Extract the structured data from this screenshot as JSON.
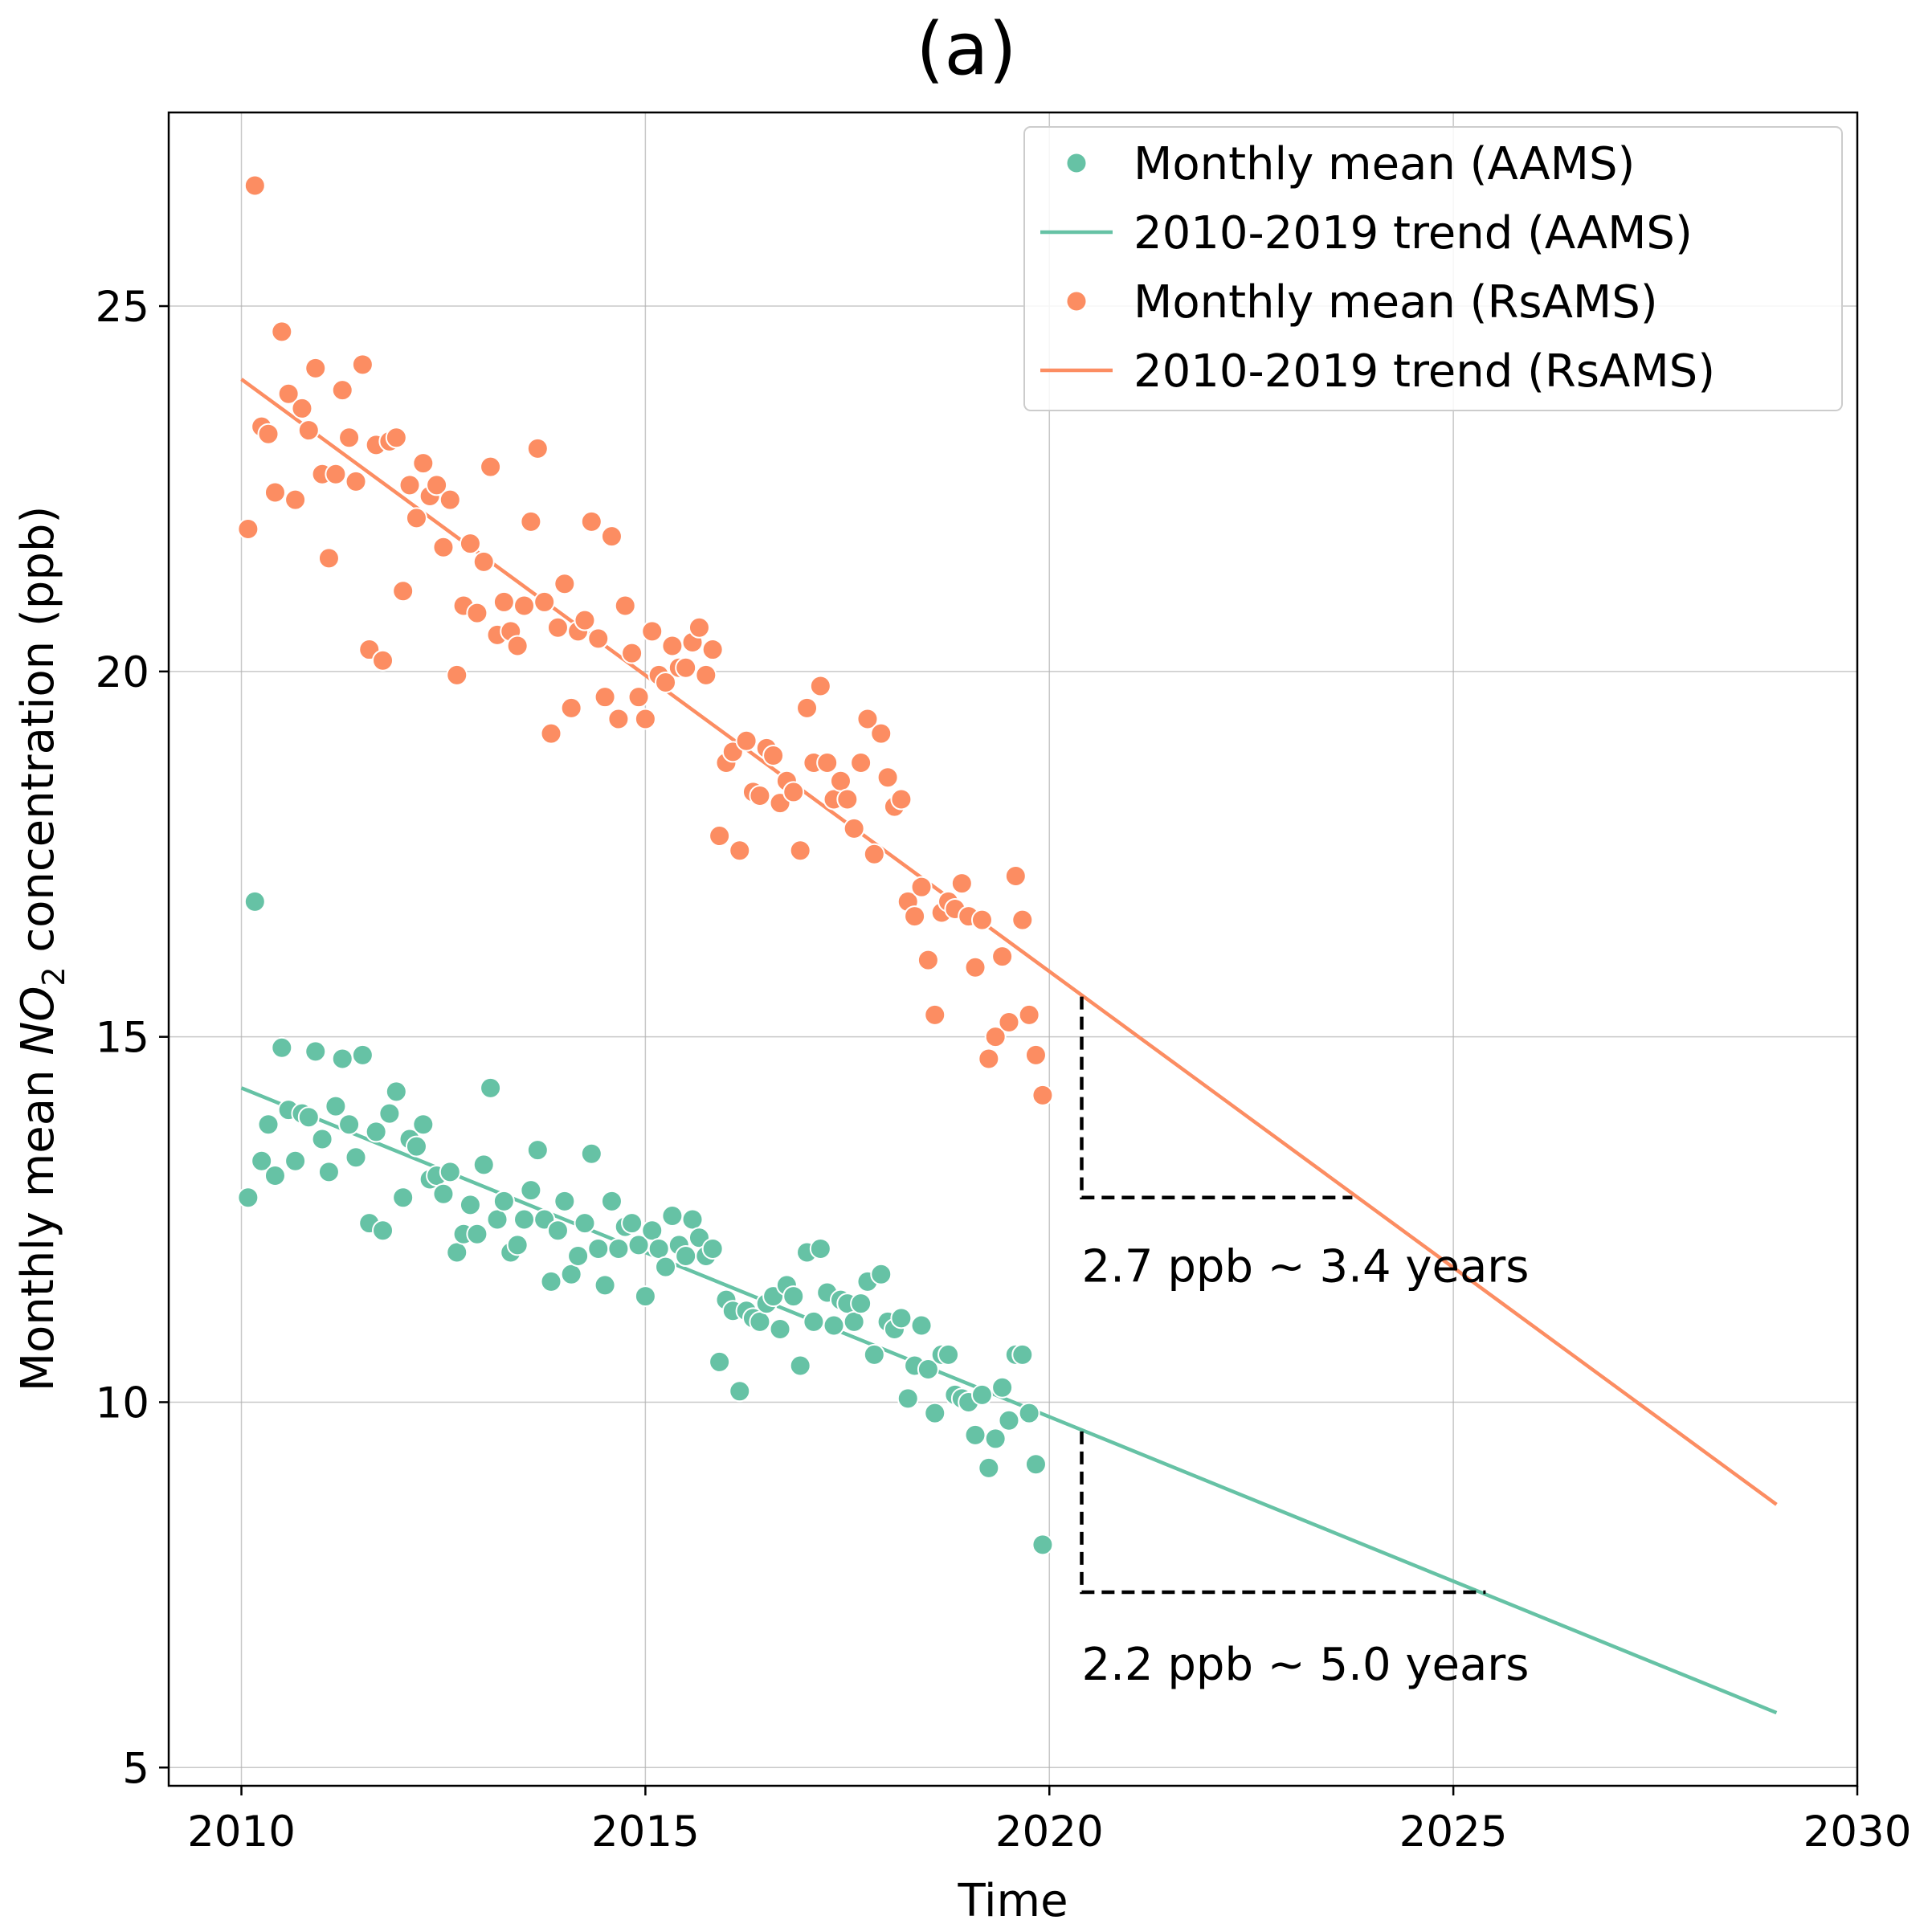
{
  "chart_data": {
    "type": "scatter",
    "title": "(a)",
    "xlabel": "Time",
    "ylabel_prefix": "Monthly mean ",
    "ylabel_species": "NO",
    "ylabel_subscript": "2",
    "ylabel_suffix": " concentration (ppb)",
    "xlim": [
      2009.1,
      2030
    ],
    "ylim": [
      4.75,
      27.65
    ],
    "x_ticks": [
      2010,
      2015,
      2020,
      2025,
      2030
    ],
    "x_tick_labels": [
      "2010",
      "2015",
      "2020",
      "2025",
      "2030"
    ],
    "y_ticks": [
      5,
      10,
      15,
      20,
      25
    ],
    "y_tick_labels": [
      "5",
      "10",
      "15",
      "20",
      "25"
    ],
    "grid": true,
    "legend_position": "top-right",
    "series": [
      {
        "name": "Monthly mean (RsAMS)",
        "kind": "scatter",
        "color": "#fc8d62",
        "x": [
          2010.083,
          2010.167,
          2010.25,
          2010.333,
          2010.417,
          2010.5,
          2010.583,
          2010.667,
          2010.75,
          2010.833,
          2010.917,
          2011.0,
          2011.083,
          2011.167,
          2011.25,
          2011.333,
          2011.417,
          2011.5,
          2011.583,
          2011.667,
          2011.75,
          2011.833,
          2011.917,
          2012.0,
          2012.083,
          2012.167,
          2012.25,
          2012.333,
          2012.417,
          2012.5,
          2012.583,
          2012.667,
          2012.75,
          2012.833,
          2012.917,
          2013.0,
          2013.083,
          2013.167,
          2013.25,
          2013.333,
          2013.417,
          2013.5,
          2013.583,
          2013.667,
          2013.75,
          2013.833,
          2013.917,
          2014.0,
          2014.083,
          2014.167,
          2014.25,
          2014.333,
          2014.417,
          2014.5,
          2014.583,
          2014.667,
          2014.75,
          2014.833,
          2014.917,
          2015.0,
          2015.083,
          2015.167,
          2015.25,
          2015.333,
          2015.417,
          2015.5,
          2015.583,
          2015.667,
          2015.75,
          2015.833,
          2015.917,
          2016.0,
          2016.083,
          2016.167,
          2016.25,
          2016.333,
          2016.417,
          2016.5,
          2016.583,
          2016.667,
          2016.75,
          2016.833,
          2016.917,
          2017.0,
          2017.083,
          2017.167,
          2017.25,
          2017.333,
          2017.417,
          2017.5,
          2017.583,
          2017.667,
          2017.75,
          2017.833,
          2017.917,
          2018.0,
          2018.083,
          2018.167,
          2018.25,
          2018.333,
          2018.417,
          2018.5,
          2018.583,
          2018.667,
          2018.75,
          2018.833,
          2018.917,
          2019.0,
          2019.083,
          2019.167,
          2019.25,
          2019.333,
          2019.417,
          2019.5,
          2019.583,
          2019.667,
          2019.75,
          2019.833,
          2019.917
        ],
        "y": [
          21.95,
          26.65,
          23.35,
          23.25,
          22.45,
          24.65,
          23.8,
          22.35,
          23.6,
          23.3,
          24.15,
          22.7,
          21.55,
          22.7,
          23.85,
          23.2,
          22.6,
          24.2,
          20.3,
          23.1,
          20.15,
          23.15,
          23.2,
          21.1,
          22.55,
          22.1,
          22.85,
          22.4,
          22.55,
          21.7,
          22.35,
          19.95,
          20.9,
          21.75,
          20.8,
          21.5,
          22.8,
          20.5,
          20.95,
          20.55,
          20.35,
          20.9,
          22.05,
          23.05,
          20.95,
          19.15,
          20.6,
          21.2,
          19.5,
          20.55,
          20.7,
          22.05,
          20.45,
          19.65,
          21.85,
          19.35,
          20.9,
          20.25,
          19.65,
          19.35,
          20.55,
          19.95,
          19.85,
          20.35,
          20.05,
          20.05,
          20.4,
          20.6,
          19.95,
          20.3,
          17.75,
          18.75,
          18.9,
          17.55,
          19.05,
          18.35,
          18.3,
          18.95,
          18.85,
          18.2,
          18.5,
          18.35,
          17.55,
          19.5,
          18.75,
          19.8,
          18.75,
          18.25,
          18.5,
          18.25,
          17.85,
          18.75,
          19.35,
          17.5,
          19.15,
          18.55,
          18.15,
          18.25,
          16.85,
          16.65,
          17.05,
          16.05,
          15.3,
          16.7,
          16.85,
          16.75,
          17.1,
          16.65,
          15.95,
          16.6,
          14.7,
          15.0,
          16.1,
          15.2,
          17.2,
          16.6,
          15.3,
          14.75,
          14.2
        ]
      },
      {
        "name": "2010-2019 trend (RsAMS)",
        "kind": "line",
        "color": "#fc8d62",
        "x": [
          2010.0,
          2029.0
        ],
        "y": [
          24.0,
          8.6
        ]
      },
      {
        "name": "Monthly mean (AAMS)",
        "kind": "scatter",
        "color": "#66c2a5",
        "x": [
          2010.083,
          2010.167,
          2010.25,
          2010.333,
          2010.417,
          2010.5,
          2010.583,
          2010.667,
          2010.75,
          2010.833,
          2010.917,
          2011.0,
          2011.083,
          2011.167,
          2011.25,
          2011.333,
          2011.417,
          2011.5,
          2011.583,
          2011.667,
          2011.75,
          2011.833,
          2011.917,
          2012.0,
          2012.083,
          2012.167,
          2012.25,
          2012.333,
          2012.417,
          2012.5,
          2012.583,
          2012.667,
          2012.75,
          2012.833,
          2012.917,
          2013.0,
          2013.083,
          2013.167,
          2013.25,
          2013.333,
          2013.417,
          2013.5,
          2013.583,
          2013.667,
          2013.75,
          2013.833,
          2013.917,
          2014.0,
          2014.083,
          2014.167,
          2014.25,
          2014.333,
          2014.417,
          2014.5,
          2014.583,
          2014.667,
          2014.75,
          2014.833,
          2014.917,
          2015.0,
          2015.083,
          2015.167,
          2015.25,
          2015.333,
          2015.417,
          2015.5,
          2015.583,
          2015.667,
          2015.75,
          2015.833,
          2015.917,
          2016.0,
          2016.083,
          2016.167,
          2016.25,
          2016.333,
          2016.417,
          2016.5,
          2016.583,
          2016.667,
          2016.75,
          2016.833,
          2016.917,
          2017.0,
          2017.083,
          2017.167,
          2017.25,
          2017.333,
          2017.417,
          2017.5,
          2017.583,
          2017.667,
          2017.75,
          2017.833,
          2017.917,
          2018.0,
          2018.083,
          2018.167,
          2018.25,
          2018.333,
          2018.417,
          2018.5,
          2018.583,
          2018.667,
          2018.75,
          2018.833,
          2018.917,
          2019.0,
          2019.083,
          2019.167,
          2019.25,
          2019.333,
          2019.417,
          2019.5,
          2019.583,
          2019.667,
          2019.75,
          2019.833,
          2019.917
        ],
        "y": [
          12.8,
          16.85,
          13.3,
          13.8,
          13.1,
          14.85,
          14.0,
          13.3,
          13.95,
          13.9,
          14.8,
          13.6,
          13.15,
          14.05,
          14.7,
          13.8,
          13.35,
          14.75,
          12.45,
          13.7,
          12.35,
          13.95,
          14.25,
          12.8,
          13.6,
          13.5,
          13.8,
          13.05,
          13.1,
          12.85,
          13.15,
          12.05,
          12.3,
          12.7,
          12.3,
          13.25,
          14.3,
          12.5,
          12.75,
          12.05,
          12.15,
          12.5,
          12.9,
          13.45,
          12.5,
          11.65,
          12.35,
          12.75,
          11.75,
          12.0,
          12.45,
          13.4,
          12.1,
          11.6,
          12.75,
          12.1,
          12.4,
          12.45,
          12.15,
          11.45,
          12.35,
          12.1,
          11.85,
          12.55,
          12.15,
          12.0,
          12.5,
          12.25,
          12.0,
          12.1,
          10.55,
          11.4,
          11.25,
          10.15,
          11.25,
          11.15,
          11.1,
          11.35,
          11.45,
          11.0,
          11.6,
          11.45,
          10.5,
          12.05,
          11.1,
          12.1,
          11.5,
          11.05,
          11.4,
          11.35,
          11.1,
          11.35,
          11.65,
          10.65,
          11.75,
          11.1,
          11.0,
          11.15,
          10.05,
          10.5,
          11.05,
          10.45,
          9.85,
          10.65,
          10.65,
          10.1,
          10.05,
          10.0,
          9.55,
          10.1,
          9.1,
          9.5,
          10.2,
          9.75,
          10.65,
          10.65,
          9.85,
          9.15,
          8.05
        ]
      },
      {
        "name": "2010-2019 trend (AAMS)",
        "kind": "line",
        "color": "#66c2a5",
        "x": [
          2010.0,
          2029.0
        ],
        "y": [
          14.3,
          5.75
        ]
      }
    ],
    "legend": [
      {
        "label": "Monthly mean (AAMS)",
        "kind": "marker",
        "color": "#66c2a5"
      },
      {
        "label": "2010-2019 trend (AAMS)",
        "kind": "line",
        "color": "#66c2a5"
      },
      {
        "label": "Monthly mean (RsAMS)",
        "kind": "marker",
        "color": "#fc8d62"
      },
      {
        "label": "2010-2019 trend (RsAMS)",
        "kind": "line",
        "color": "#fc8d62"
      }
    ],
    "annotations": [
      {
        "text": "2.7 ppb ~ 3.4 years",
        "bracket": {
          "x_start": 2020.4,
          "y_top": 15.55,
          "y_bottom": 12.8,
          "x_end": 2023.75
        },
        "text_anchor": {
          "x": 2020.4,
          "y": 11.65
        }
      },
      {
        "text": "2.2 ppb ~ 5.0 years",
        "bracket": {
          "x_start": 2020.4,
          "y_top": 9.6,
          "y_bottom": 7.4,
          "x_end": 2025.4
        },
        "text_anchor": {
          "x": 2020.4,
          "y": 6.2
        }
      }
    ]
  }
}
